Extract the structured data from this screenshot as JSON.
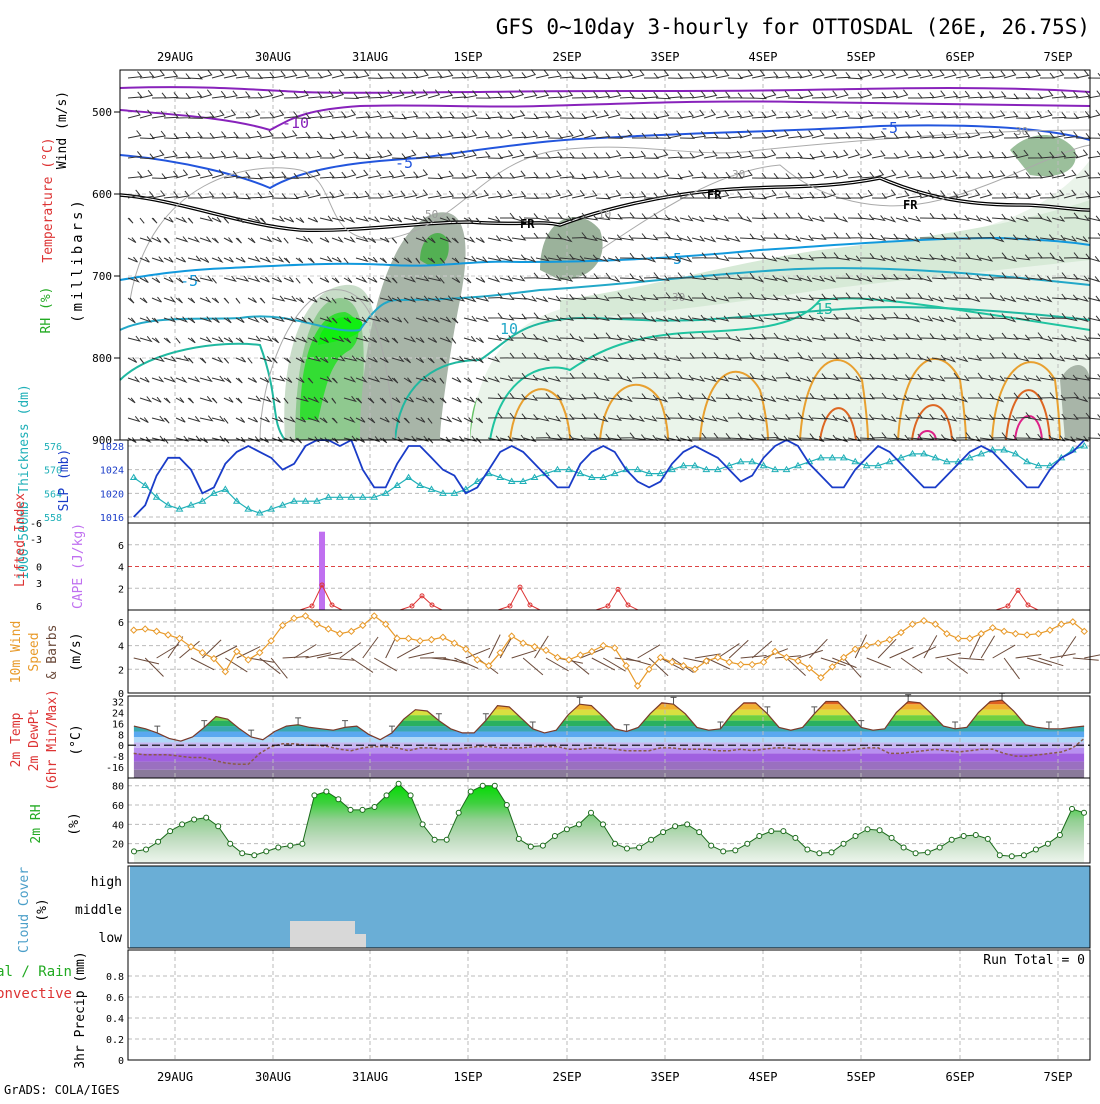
{
  "title": "GFS 0~10day 3-hourly for OTTOSDAL (26E, 26.75S)",
  "footer": "GrADS: COLA/IGES",
  "date_labels": [
    "29AUG",
    "30AUG",
    "31AUG",
    "1SEP",
    "2SEP",
    "3SEP",
    "4SEP",
    "5SEP",
    "6SEP",
    "7SEP"
  ],
  "panels": {
    "upper": {
      "label_wind": "Wind (m/s)",
      "label_temp": "Temperature (°C)",
      "label_rh": "RH (%)",
      "label_mb": "(millibars)",
      "y_ticks": [
        "500",
        "600",
        "700",
        "800",
        "900"
      ],
      "contour_labels": [
        "-10",
        "-5",
        "-5",
        "-5",
        "5",
        "10",
        "15",
        "FR",
        "FR",
        "FR",
        "30",
        "30",
        "30",
        "10",
        "50"
      ]
    },
    "slp": {
      "label_thick": "1000-500mb Thickness (dm)",
      "label_slp": "SLP (mb)",
      "left_ticks": [
        "576",
        "570",
        "564",
        "558"
      ],
      "right_ticks": [
        "1028",
        "1024",
        "1020",
        "1016"
      ]
    },
    "li": {
      "label_li": "Lifted Index",
      "label_cape": "CAPE (J/kg)",
      "left_ticks": [
        "-6",
        "-3",
        "0",
        "3",
        "6"
      ],
      "right_ticks": [
        "6",
        "4",
        "2"
      ]
    },
    "wind10": {
      "label_a": "10m Wind",
      "label_b": "Speed",
      "label_c": "& Barbs",
      "label_unit": "(m/s)",
      "y_ticks": [
        "6",
        "4",
        "2",
        "0"
      ]
    },
    "temp2m": {
      "label_a": "2m Temp",
      "label_b": "2m DewPt",
      "label_c": "(6hr Min/Max)",
      "label_unit": "(°C)",
      "y_ticks": [
        "32",
        "24",
        "16",
        "8",
        "0",
        "-8",
        "-16"
      ]
    },
    "rh2m": {
      "label_a": "2m RH",
      "label_unit": "(%)",
      "y_ticks": [
        "80",
        "60",
        "40",
        "20"
      ]
    },
    "cloud": {
      "label_a": "Cloud Cover",
      "label_unit": "(%)",
      "levels": [
        "high",
        "middle",
        "low"
      ]
    },
    "precip": {
      "label_a": "Total / Rain",
      "label_b": "Convective",
      "label_c": "3hr Precip (mm)",
      "run_total": "Run Total = 0",
      "y_ticks": [
        "0.8",
        "0.6",
        "0.4",
        "0.2",
        "0"
      ]
    }
  },
  "colors": {
    "slp": "#1a3cc8",
    "thickness": "#20b0b8",
    "lifted": "#dd3333",
    "cape": "#c070f0",
    "wind10": "#e89a2a",
    "barb": "#6b4a3a",
    "rh": "#2a9a2a",
    "cloud": "#6aaed6",
    "cloud_low": "#d8d8d8"
  },
  "chart_data": [
    {
      "type": "line",
      "title": "1000-500mb Thickness / SLP",
      "series": [
        {
          "name": "SLP (mb)",
          "values": [
            1016,
            1018,
            1023,
            1026,
            1026,
            1024,
            1020,
            1021,
            1025,
            1027,
            1028,
            1027,
            1026,
            1024,
            1025,
            1028,
            1029,
            1029,
            1028,
            1029,
            1024,
            1021,
            1021,
            1025,
            1028,
            1028,
            1026,
            1024,
            1023,
            1020,
            1021,
            1024,
            1027,
            1028,
            1027,
            1025,
            1023,
            1021,
            1021,
            1025,
            1027,
            1028,
            1027,
            1024,
            1022,
            1021,
            1022,
            1025,
            1027,
            1028,
            1027,
            1026,
            1024,
            1022,
            1023,
            1026,
            1028,
            1029,
            1028,
            1025,
            1023,
            1021,
            1021,
            1024,
            1026,
            1028,
            1027,
            1025,
            1023,
            1021,
            1021,
            1023,
            1025,
            1027,
            1028,
            1027,
            1025,
            1023,
            1021,
            1021,
            1024,
            1026,
            1027,
            1029
          ]
        },
        {
          "name": "Thickness (dm)",
          "values": [
            568,
            566,
            563,
            561,
            560,
            561,
            562,
            564,
            565,
            562,
            560,
            559,
            560,
            561,
            562,
            562,
            562,
            563,
            563,
            563,
            563,
            563,
            564,
            566,
            568,
            566,
            565,
            564,
            564,
            565,
            567,
            569,
            568,
            567,
            567,
            568,
            569,
            570,
            570,
            569,
            568,
            568,
            569,
            570,
            570,
            569,
            569,
            570,
            571,
            571,
            570,
            570,
            571,
            572,
            572,
            571,
            570,
            570,
            571,
            572,
            573,
            573,
            573,
            572,
            571,
            571,
            572,
            573,
            574,
            574,
            573,
            572,
            572,
            573,
            574,
            575,
            575,
            574,
            572,
            571,
            571,
            573,
            575,
            576
          ]
        }
      ],
      "ylim_left": [
        558,
        576
      ],
      "ylim_right": [
        1016,
        1028
      ]
    },
    {
      "type": "bar",
      "title": "CAPE (J/kg) / Lifted Index",
      "cape_peak": 7.2,
      "lifted_index_peaks": [
        2.3,
        1.3,
        2.1,
        1.9,
        1.8
      ]
    },
    {
      "type": "line",
      "title": "10m Wind Speed",
      "series": [
        {
          "name": "Speed (m/s)",
          "values": [
            5.3,
            5.4,
            5.2,
            4.9,
            4.6,
            3.9,
            3.4,
            2.9,
            1.8,
            3.5,
            2.8,
            3.4,
            4.4,
            5.7,
            6.3,
            6.5,
            5.8,
            5.4,
            5.0,
            5.2,
            5.7,
            6.5,
            5.8,
            4.6,
            4.6,
            4.4,
            4.5,
            4.7,
            4.2,
            3.7,
            2.8,
            2.3,
            3.4,
            4.8,
            4.2,
            3.9,
            3.6,
            3.0,
            2.8,
            3.2,
            3.5,
            4.0,
            3.8,
            2.3,
            0.6,
            2.0,
            3.0,
            2.6,
            2.3,
            2.0,
            2.7,
            3.0,
            2.6,
            2.4,
            2.4,
            2.6,
            3.5,
            3.0,
            2.7,
            2.1,
            1.3,
            2.2,
            3.0,
            3.7,
            4.0,
            4.2,
            4.5,
            5.1,
            5.8,
            6.1,
            5.8,
            5.0,
            4.6,
            4.6,
            5.0,
            5.5,
            5.2,
            5.0,
            4.9,
            5.0,
            5.3,
            5.8,
            6.0,
            5.2
          ]
        }
      ],
      "ylim": [
        0,
        7
      ]
    },
    {
      "type": "area",
      "title": "2m Temp / 2m DewPt",
      "series": [
        {
          "name": "2m Temp (°C)",
          "values": [
            14,
            12,
            9,
            5,
            3,
            6,
            13,
            21,
            19,
            12,
            6,
            4,
            10,
            14,
            15,
            13,
            12,
            11,
            13,
            14,
            8,
            4,
            9,
            19,
            26,
            25,
            18,
            12,
            9,
            9,
            18,
            29,
            28,
            20,
            12,
            9,
            11,
            22,
            30,
            29,
            21,
            12,
            10,
            13,
            23,
            31,
            30,
            23,
            13,
            11,
            12,
            23,
            31,
            31,
            23,
            13,
            11,
            13,
            23,
            32,
            32,
            23,
            13,
            11,
            12,
            24,
            32,
            31,
            23,
            14,
            12,
            13,
            24,
            32,
            33,
            25,
            15,
            13,
            12,
            12,
            13,
            14
          ]
        },
        {
          "name": "2m DewPt (°C)",
          "values": [
            -6,
            -7,
            -7,
            -7,
            -8,
            -9,
            -9,
            -11,
            -13,
            -14,
            -14,
            -6,
            -1,
            1,
            1,
            0,
            0,
            -1,
            -3,
            -4,
            -2,
            -1,
            -1,
            -2,
            -4,
            -2,
            -2,
            -3,
            -3,
            -2,
            -1,
            -1,
            -2,
            -2,
            -2,
            -1,
            -1,
            -1,
            -3,
            -3,
            -2,
            -2,
            -3,
            -4,
            -4,
            -4,
            -2,
            -2,
            -3,
            -3,
            -3,
            -4,
            -4,
            -3,
            -4,
            -3,
            -2,
            -2,
            -3,
            -3,
            -4,
            -4,
            -4,
            -3,
            -2,
            -2,
            -6,
            -6,
            -5,
            -4,
            -3,
            -4,
            -5,
            -4,
            -3,
            -3,
            -6,
            -8,
            -8,
            -7,
            -6,
            -5,
            -2,
            5
          ]
        }
      ],
      "ylim": [
        -24,
        36
      ]
    },
    {
      "type": "area",
      "title": "2m RH",
      "series": [
        {
          "name": "2m RH (%)",
          "values": [
            12,
            14,
            22,
            33,
            40,
            45,
            47,
            38,
            20,
            10,
            8,
            12,
            16,
            18,
            20,
            70,
            74,
            66,
            55,
            55,
            58,
            70,
            82,
            70,
            40,
            24,
            24,
            52,
            74,
            80,
            80,
            60,
            25,
            17,
            18,
            28,
            35,
            40,
            52,
            40,
            20,
            15,
            16,
            24,
            32,
            38,
            40,
            32,
            18,
            12,
            13,
            20,
            28,
            33,
            33,
            26,
            14,
            10,
            11,
            20,
            28,
            35,
            34,
            26,
            16,
            10,
            11,
            16,
            24,
            28,
            29,
            25,
            8,
            7,
            8,
            14,
            20,
            29,
            56,
            52
          ]
        }
      ],
      "ylim": [
        0,
        88
      ]
    },
    {
      "type": "area",
      "title": "Cloud Cover",
      "low_cover": "low cloud present only early 30AUG–31AUG"
    },
    {
      "type": "bar",
      "title": "3hr Precip",
      "values": [],
      "ylim": [
        0,
        1
      ]
    }
  ]
}
